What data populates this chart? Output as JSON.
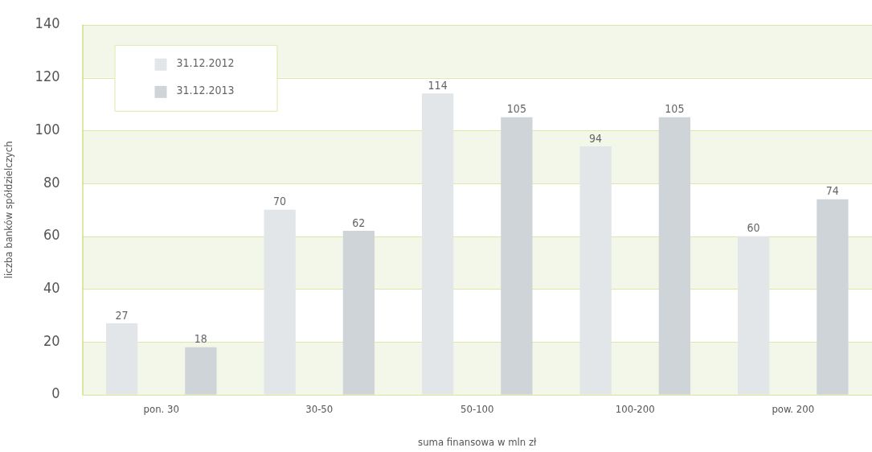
{
  "chart_data": {
    "type": "bar",
    "xlabel": "suma finansowa w mln zł",
    "ylabel": "liczba banków spółdzielczych",
    "categories": [
      "pon. 30",
      "30-50",
      "50-100",
      "100-200",
      "pow. 200"
    ],
    "series": [
      {
        "name": "31.12.2012",
        "color": "#e2e6e9",
        "values": [
          27,
          70,
          114,
          94,
          60
        ]
      },
      {
        "name": "31.12.2013",
        "color": "#cfd4d8",
        "values": [
          18,
          62,
          105,
          105,
          74
        ]
      }
    ],
    "ylim": [
      0,
      140
    ],
    "yticks": [
      0,
      20,
      40,
      60,
      80,
      100,
      120,
      140
    ],
    "grid": "y",
    "legend": "top left",
    "data_labels": true
  }
}
